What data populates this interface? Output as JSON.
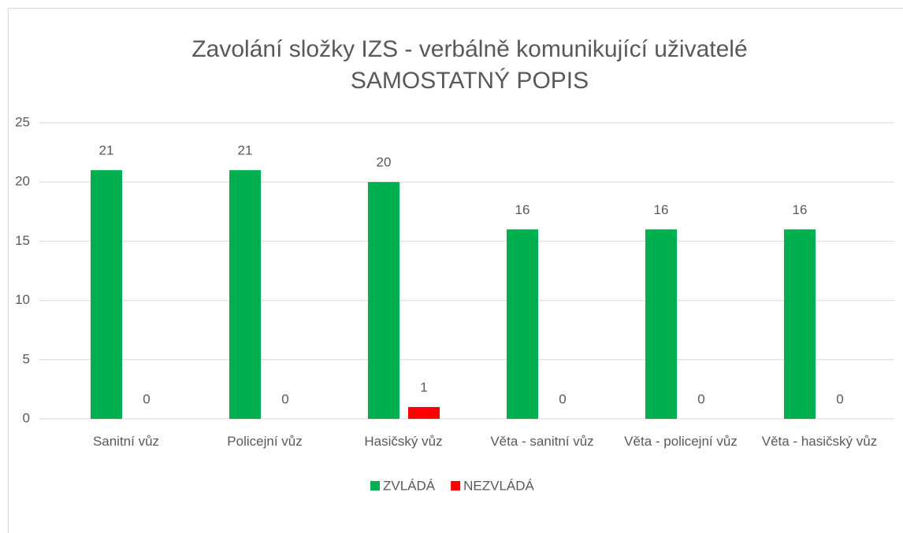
{
  "chart_data": {
    "type": "bar",
    "title": [
      "Zavolání složky IZS - verbálně komunikující uživatelé",
      "SAMOSTATNÝ POPIS"
    ],
    "categories": [
      "Sanitní vůz",
      "Policejní vůz",
      "Hasičský vůz",
      "Věta - sanitní vůz",
      "Věta - policejní vůz",
      "Věta - hasičský vůz"
    ],
    "series": [
      {
        "name": "ZVLÁDÁ",
        "color": "#00b050",
        "values": [
          21,
          21,
          20,
          16,
          16,
          16
        ]
      },
      {
        "name": "NEZVLÁDÁ",
        "color": "#ff0000",
        "values": [
          0,
          0,
          1,
          0,
          0,
          0
        ]
      }
    ],
    "ylim": [
      0,
      25
    ],
    "yticks": [
      0,
      5,
      10,
      15,
      20,
      25
    ],
    "grid": true,
    "legend": "bottom"
  }
}
